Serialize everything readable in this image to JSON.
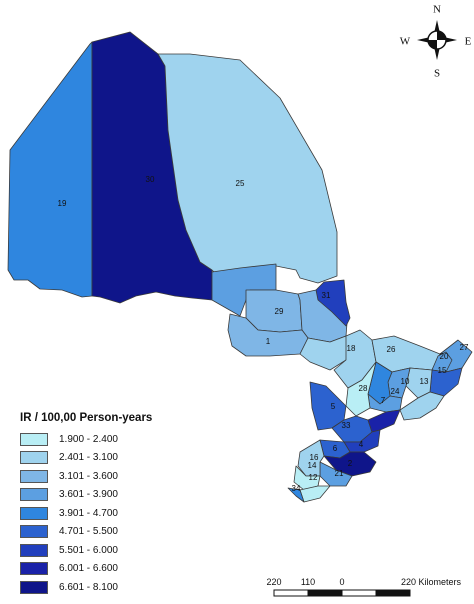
{
  "legend": {
    "title": "IR / 100,00 Person-years",
    "classes": [
      {
        "label": "1.900 - 2.400",
        "color": "#b9eef5"
      },
      {
        "label": "2.401 - 3.100",
        "color": "#9fd3ee"
      },
      {
        "label": "3.101 - 3.600",
        "color": "#7fb6e6"
      },
      {
        "label": "3.601 - 3.900",
        "color": "#5c9fe1"
      },
      {
        "label": "3.901 - 4.700",
        "color": "#2f86df"
      },
      {
        "label": "4.701 - 5.500",
        "color": "#2c62cf"
      },
      {
        "label": "5.501 - 6.000",
        "color": "#213fbd"
      },
      {
        "label": "6.001 - 6.600",
        "color": "#1a22a8"
      },
      {
        "label": "6.601 - 8.100",
        "color": "#0f158a"
      }
    ]
  },
  "compass": {
    "n": "N",
    "s": "S",
    "e": "E",
    "w": "W"
  },
  "scale_bar": {
    "ticks": [
      "220",
      "110",
      "0",
      "220 Kilometers"
    ]
  },
  "region_labels": {
    "r19": "19",
    "r30": "30",
    "r25": "25",
    "r29": "29",
    "r31": "31",
    "r1": "1",
    "r18": "18",
    "r26": "26",
    "r27": "27",
    "r20": "20",
    "r15": "15",
    "r28": "28",
    "r10": "10",
    "r13": "13",
    "r24": "24",
    "r7": "7",
    "r5": "5",
    "r33": "33",
    "r4": "4",
    "r6": "6",
    "r2": "2",
    "r21": "21",
    "r16": "16",
    "r14": "14",
    "r12": "12",
    "r34": "34"
  }
}
